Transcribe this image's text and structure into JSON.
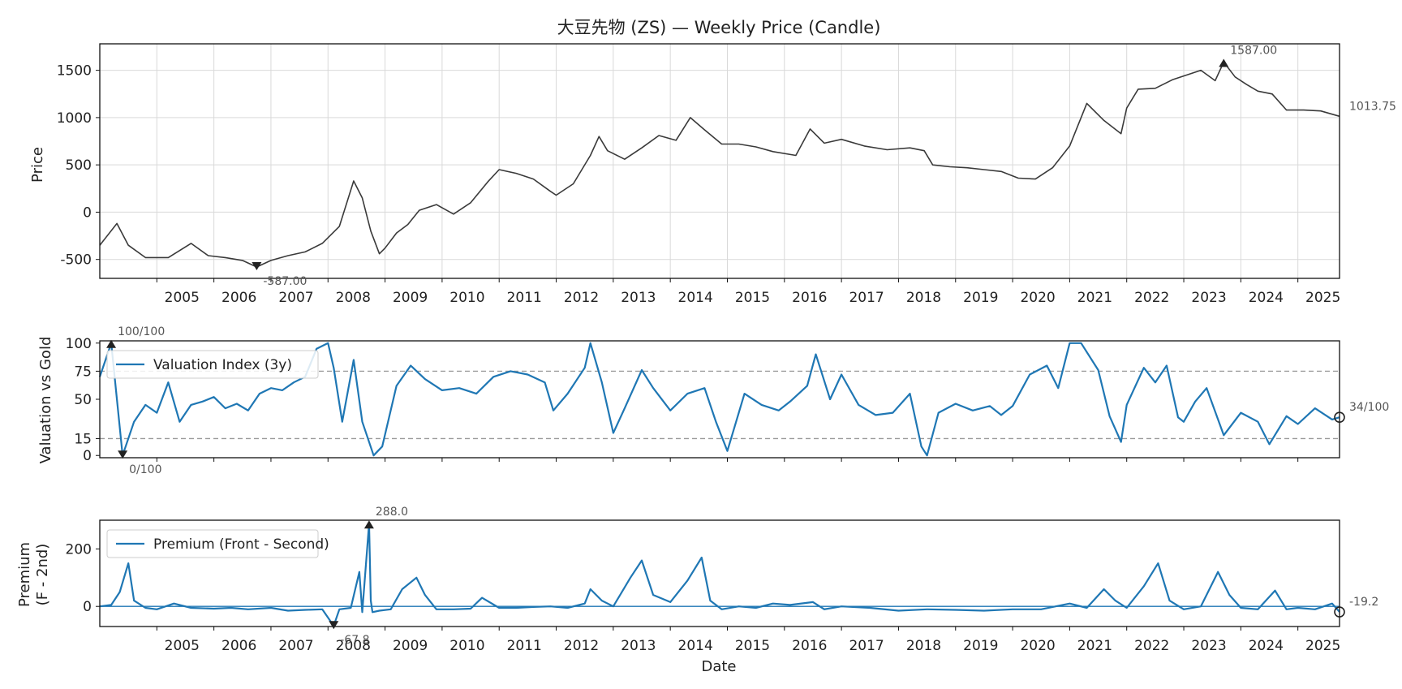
{
  "title": "大豆先物 (ZS) — Weekly Price (Candle)",
  "colors": {
    "price": "#3a3a3a",
    "series": "#1f77b4",
    "refline": "#999999",
    "marker": "#222222",
    "annotation": "#555555"
  },
  "chart_data": [
    {
      "type": "line",
      "ylabel": "Price",
      "xlim": [
        2004.0,
        2025.73
      ],
      "ylim": [
        -700,
        1780
      ],
      "yticks": [
        -500,
        0,
        500,
        1000,
        1500
      ],
      "xticks": [
        2005,
        2006,
        2007,
        2008,
        2009,
        2010,
        2011,
        2012,
        2013,
        2014,
        2015,
        2016,
        2017,
        2018,
        2019,
        2020,
        2021,
        2022,
        2023,
        2024,
        2025
      ],
      "grid": true,
      "series": [
        {
          "x": [
            2004.0,
            2004.3,
            2004.5,
            2004.8,
            2005.2,
            2005.6,
            2005.9,
            2006.2,
            2006.5,
            2006.75,
            2007.0,
            2007.3,
            2007.6,
            2007.9,
            2008.2,
            2008.45,
            2008.6,
            2008.75,
            2008.9,
            2009.0,
            2009.2,
            2009.4,
            2009.6,
            2009.9,
            2010.2,
            2010.5,
            2010.8,
            2011.0,
            2011.3,
            2011.6,
            2011.9,
            2012.0,
            2012.3,
            2012.6,
            2012.75,
            2012.9,
            2013.2,
            2013.5,
            2013.8,
            2014.1,
            2014.35,
            2014.6,
            2014.9,
            2015.2,
            2015.5,
            2015.8,
            2016.2,
            2016.45,
            2016.7,
            2017.0,
            2017.4,
            2017.8,
            2018.2,
            2018.45,
            2018.6,
            2018.9,
            2019.2,
            2019.5,
            2019.8,
            2020.1,
            2020.4,
            2020.7,
            2021.0,
            2021.3,
            2021.6,
            2021.9,
            2022.0,
            2022.2,
            2022.5,
            2022.8,
            2023.0,
            2023.3,
            2023.55,
            2023.7,
            2023.9,
            2024.1,
            2024.3,
            2024.55,
            2024.8,
            2025.1,
            2025.4,
            2025.73
          ],
          "y": [
            -350,
            -120,
            -350,
            -480,
            -480,
            -330,
            -460,
            -480,
            -510,
            -580,
            -510,
            -460,
            -420,
            -330,
            -150,
            330,
            150,
            -200,
            -440,
            -380,
            -220,
            -130,
            20,
            80,
            -20,
            100,
            320,
            450,
            410,
            350,
            220,
            180,
            300,
            600,
            800,
            650,
            560,
            680,
            810,
            760,
            1000,
            870,
            720,
            720,
            690,
            640,
            600,
            880,
            730,
            770,
            700,
            660,
            680,
            650,
            500,
            480,
            470,
            450,
            430,
            360,
            350,
            470,
            700,
            1150,
            970,
            830,
            1100,
            1300,
            1310,
            1400,
            1440,
            1500,
            1390,
            1587,
            1430,
            1350,
            1280,
            1250,
            1080,
            1080,
            1070,
            1013.75
          ]
        }
      ],
      "annotations": {
        "max_label": "1587.00",
        "min_label": "-587.00",
        "last_label": "1013.75"
      }
    },
    {
      "type": "line",
      "ylabel": "Valuation vs Gold",
      "xlim": [
        2004.0,
        2025.73
      ],
      "ylim": [
        -2,
        102
      ],
      "yticks": [
        0,
        15,
        50,
        75,
        100
      ],
      "hlines": [
        15,
        75
      ],
      "legend": "top-left",
      "series": [
        {
          "name": "Valuation Index (3y)",
          "x": [
            2004.0,
            2004.2,
            2004.4,
            2004.6,
            2004.8,
            2005.0,
            2005.2,
            2005.4,
            2005.6,
            2005.8,
            2006.0,
            2006.2,
            2006.4,
            2006.6,
            2006.8,
            2007.0,
            2007.2,
            2007.4,
            2007.6,
            2007.8,
            2008.0,
            2008.1,
            2008.25,
            2008.45,
            2008.6,
            2008.8,
            2008.95,
            2009.2,
            2009.45,
            2009.7,
            2010.0,
            2010.3,
            2010.6,
            2010.9,
            2011.2,
            2011.5,
            2011.8,
            2011.95,
            2012.2,
            2012.5,
            2012.6,
            2012.8,
            2013.0,
            2013.2,
            2013.5,
            2013.7,
            2014.0,
            2014.3,
            2014.6,
            2014.8,
            2015.0,
            2015.3,
            2015.6,
            2015.9,
            2016.1,
            2016.4,
            2016.55,
            2016.8,
            2017.0,
            2017.3,
            2017.6,
            2017.9,
            2018.2,
            2018.4,
            2018.5,
            2018.7,
            2019.0,
            2019.3,
            2019.6,
            2019.8,
            2020.0,
            2020.3,
            2020.6,
            2020.8,
            2021.0,
            2021.2,
            2021.5,
            2021.7,
            2021.9,
            2022.0,
            2022.3,
            2022.5,
            2022.7,
            2022.9,
            2023.0,
            2023.2,
            2023.4,
            2023.7,
            2024.0,
            2024.3,
            2024.5,
            2024.8,
            2025.0,
            2025.3,
            2025.6,
            2025.73
          ],
          "y": [
            70,
            100,
            0,
            30,
            45,
            38,
            65,
            30,
            45,
            48,
            52,
            42,
            46,
            40,
            55,
            60,
            58,
            65,
            70,
            95,
            100,
            78,
            30,
            85,
            30,
            0,
            8,
            62,
            80,
            68,
            58,
            60,
            55,
            70,
            75,
            72,
            65,
            40,
            55,
            78,
            100,
            65,
            20,
            42,
            76,
            60,
            40,
            55,
            60,
            30,
            4,
            55,
            45,
            40,
            48,
            62,
            90,
            50,
            72,
            45,
            36,
            38,
            55,
            8,
            0,
            38,
            46,
            40,
            44,
            36,
            44,
            72,
            80,
            60,
            100,
            100,
            76,
            35,
            12,
            45,
            78,
            65,
            80,
            34,
            30,
            48,
            60,
            18,
            38,
            30,
            10,
            35,
            28,
            42,
            32,
            34
          ]
        }
      ],
      "annotations": {
        "max_label": "100/100",
        "min_label": "0/100",
        "last_label": "34/100"
      }
    },
    {
      "type": "line",
      "ylabel": "Premium\n(F - 2nd)",
      "xlabel": "Date",
      "xlim": [
        2004.0,
        2025.73
      ],
      "ylim": [
        -70,
        300
      ],
      "yticks": [
        0,
        200
      ],
      "hlines": [
        0
      ],
      "legend": "top-left",
      "xticks": [
        2005,
        2006,
        2007,
        2008,
        2009,
        2010,
        2011,
        2012,
        2013,
        2014,
        2015,
        2016,
        2017,
        2018,
        2019,
        2020,
        2021,
        2022,
        2023,
        2024,
        2025
      ],
      "series": [
        {
          "name": "Premium (Front - Second)",
          "x": [
            2004.0,
            2004.2,
            2004.35,
            2004.5,
            2004.6,
            2004.8,
            2005.0,
            2005.3,
            2005.6,
            2006.0,
            2006.3,
            2006.6,
            2007.0,
            2007.3,
            2007.6,
            2007.9,
            2008.1,
            2008.2,
            2008.4,
            2008.55,
            2008.6,
            2008.72,
            2008.75,
            2008.78,
            2008.9,
            2009.1,
            2009.3,
            2009.55,
            2009.7,
            2009.9,
            2010.2,
            2010.5,
            2010.7,
            2011.0,
            2011.3,
            2011.6,
            2011.9,
            2012.2,
            2012.5,
            2012.6,
            2012.8,
            2013.0,
            2013.3,
            2013.5,
            2013.7,
            2014.0,
            2014.3,
            2014.55,
            2014.7,
            2014.9,
            2015.2,
            2015.5,
            2015.8,
            2016.1,
            2016.5,
            2016.7,
            2017.0,
            2017.5,
            2018.0,
            2018.5,
            2019.0,
            2019.5,
            2020.0,
            2020.5,
            2021.0,
            2021.3,
            2021.6,
            2021.8,
            2022.0,
            2022.3,
            2022.55,
            2022.75,
            2023.0,
            2023.3,
            2023.6,
            2023.8,
            2024.0,
            2024.3,
            2024.6,
            2024.8,
            2025.0,
            2025.3,
            2025.6,
            2025.73
          ],
          "y": [
            0,
            5,
            50,
            150,
            20,
            -5,
            -10,
            10,
            -5,
            -8,
            -5,
            -10,
            -5,
            -15,
            -12,
            -10,
            -67.8,
            -10,
            -5,
            120,
            -20,
            288,
            20,
            -20,
            -15,
            -10,
            60,
            100,
            40,
            -10,
            -10,
            -8,
            30,
            -5,
            -5,
            -2,
            0,
            -5,
            10,
            60,
            20,
            0,
            100,
            160,
            40,
            15,
            90,
            170,
            20,
            -10,
            0,
            -5,
            10,
            5,
            15,
            -10,
            0,
            -5,
            -15,
            -10,
            -12,
            -15,
            -10,
            -10,
            10,
            -5,
            60,
            20,
            -5,
            70,
            150,
            20,
            -10,
            0,
            120,
            40,
            -5,
            -10,
            55,
            -10,
            -5,
            -10,
            10,
            -19.2
          ]
        }
      ],
      "annotations": {
        "max_label": "288.0",
        "min_label": "-67.8",
        "last_label": "-19.2"
      }
    }
  ]
}
